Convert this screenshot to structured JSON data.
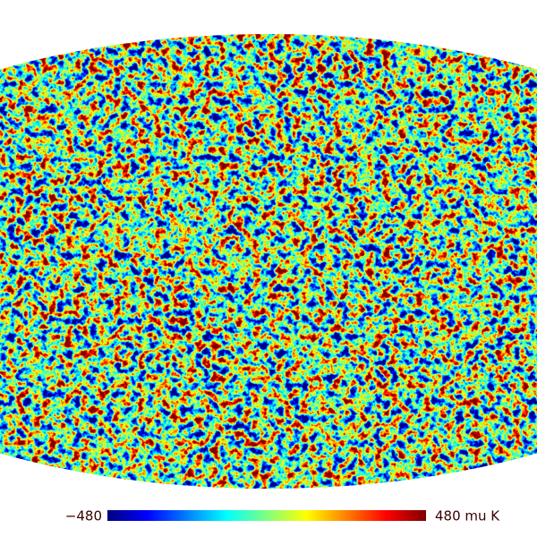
{
  "colorbar": {
    "min": {
      "value": -480,
      "label": "−480"
    },
    "max": {
      "value": 480,
      "label": "480 mu K"
    }
  }
}
